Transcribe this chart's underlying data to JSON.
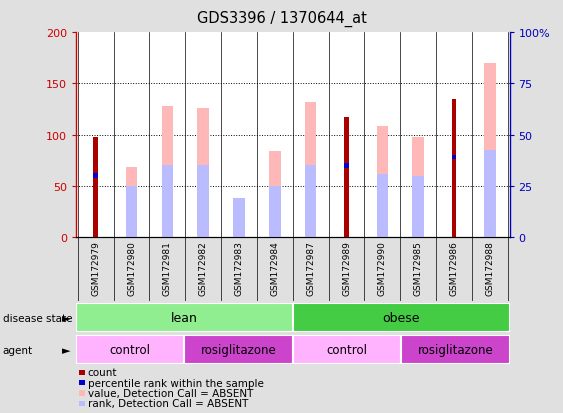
{
  "title": "GDS3396 / 1370644_at",
  "samples": [
    "GSM172979",
    "GSM172980",
    "GSM172981",
    "GSM172982",
    "GSM172983",
    "GSM172984",
    "GSM172987",
    "GSM172989",
    "GSM172990",
    "GSM172985",
    "GSM172986",
    "GSM172988"
  ],
  "count": [
    98,
    0,
    0,
    0,
    0,
    0,
    0,
    117,
    0,
    0,
    135,
    0
  ],
  "percentile_rank": [
    60,
    0,
    0,
    0,
    0,
    0,
    0,
    70,
    0,
    0,
    78,
    0
  ],
  "value_absent": [
    0,
    68,
    128,
    126,
    38,
    84,
    132,
    0,
    108,
    98,
    0,
    170
  ],
  "rank_absent": [
    0,
    50,
    70,
    70,
    38,
    50,
    70,
    0,
    62,
    60,
    0,
    85
  ],
  "count_has_rank": [
    1,
    0,
    0,
    0,
    0,
    0,
    0,
    1,
    0,
    0,
    1,
    0
  ],
  "absent_has_rank": [
    0,
    0,
    1,
    1,
    1,
    0,
    1,
    0,
    1,
    1,
    0,
    1
  ],
  "ylim_left": [
    0,
    200
  ],
  "yticks_left": [
    0,
    50,
    100,
    150,
    200
  ],
  "yticks_right": [
    0,
    25,
    50,
    75,
    100
  ],
  "yticklabels_right": [
    "0",
    "25",
    "50",
    "75",
    "100%"
  ],
  "disease_state": [
    {
      "label": "lean",
      "start": 0,
      "end": 6,
      "color": "#90EE90"
    },
    {
      "label": "obese",
      "start": 6,
      "end": 12,
      "color": "#44CC44"
    }
  ],
  "agent": [
    {
      "label": "control",
      "start": 0,
      "end": 3,
      "color": "#FFB3FF"
    },
    {
      "label": "rosiglitazone",
      "start": 3,
      "end": 6,
      "color": "#CC44CC"
    },
    {
      "label": "control",
      "start": 6,
      "end": 9,
      "color": "#FFB3FF"
    },
    {
      "label": "rosiglitazone",
      "start": 9,
      "end": 12,
      "color": "#CC44CC"
    }
  ],
  "count_color": "#AA0000",
  "percentile_color": "#0000CC",
  "value_absent_color": "#FFB8B8",
  "rank_absent_color": "#BBBBFF",
  "left_axis_color": "#CC0000",
  "right_axis_color": "#0000BB",
  "bg_color": "#E0E0E0",
  "plot_bg_color": "#FFFFFF",
  "xtick_bg_color": "#C8C8C8"
}
